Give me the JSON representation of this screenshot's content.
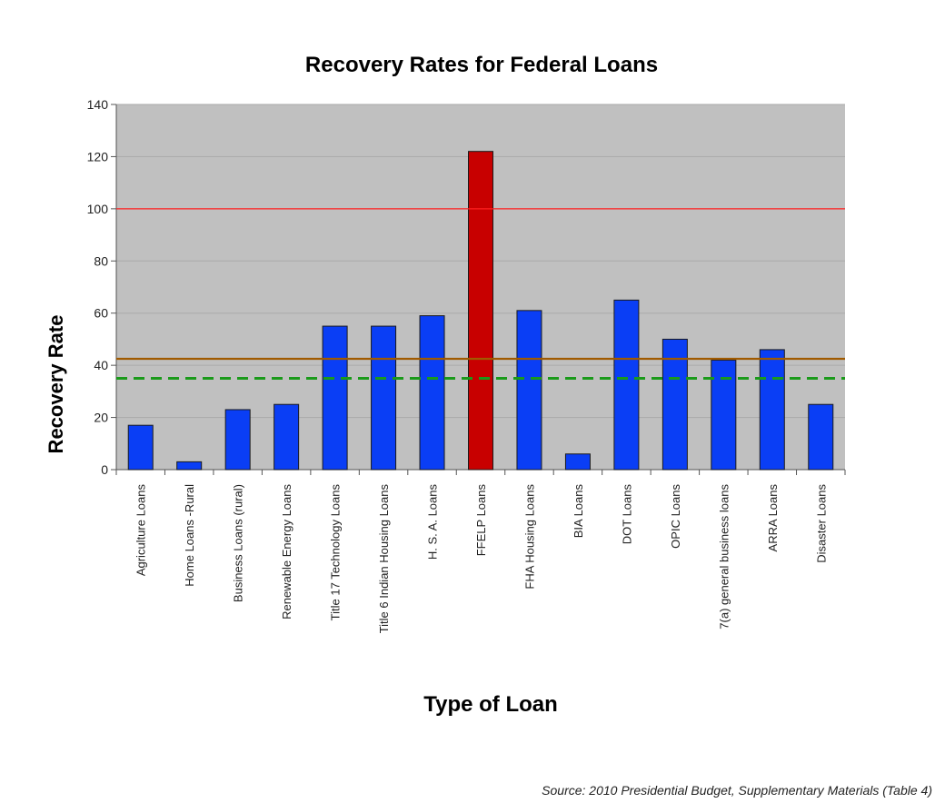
{
  "chart_data": {
    "type": "bar",
    "title": "Recovery Rates for Federal Loans",
    "xlabel": "Type of Loan",
    "ylabel": "Recovery Rate",
    "ylim": [
      0,
      140
    ],
    "yticks": [
      0,
      20,
      40,
      60,
      80,
      100,
      120,
      140
    ],
    "grid": true,
    "categories": [
      "Agriculture Loans",
      "Home Loans -Rural",
      "Business Loans (rural)",
      "Renewable Energy Loans",
      "Title 17 Technology Loans",
      "Title 6 Indian Housing Loans",
      "H. S. A. Loans",
      "FFELP Loans",
      "FHA Housing Loans",
      "BIA Loans",
      "DOT Loans",
      "OPIC Loans",
      "7(a) general business loans",
      "ARRA Loans",
      "Disaster Loans"
    ],
    "values": [
      17,
      3,
      23,
      25,
      55,
      55,
      59,
      122,
      61,
      6,
      65,
      50,
      42,
      46,
      25
    ],
    "bar_colors": [
      "#0a3ef5",
      "#0a3ef5",
      "#0a3ef5",
      "#0a3ef5",
      "#0a3ef5",
      "#0a3ef5",
      "#0a3ef5",
      "#c80000",
      "#0a3ef5",
      "#0a3ef5",
      "#0a3ef5",
      "#0a3ef5",
      "#0a3ef5",
      "#0a3ef5",
      "#0a3ef5"
    ],
    "reference_lines": [
      {
        "value": 100,
        "color": "#ff2020",
        "style": "solid"
      },
      {
        "value": 42.5,
        "color": "#a05a00",
        "style": "solid"
      },
      {
        "value": 35,
        "color": "#1a9a1a",
        "style": "dashed"
      }
    ],
    "plot_background": "#c0c0c0",
    "source": "Source:  2010 Presidential Budget, Supplementary Materials (Table 4)"
  }
}
